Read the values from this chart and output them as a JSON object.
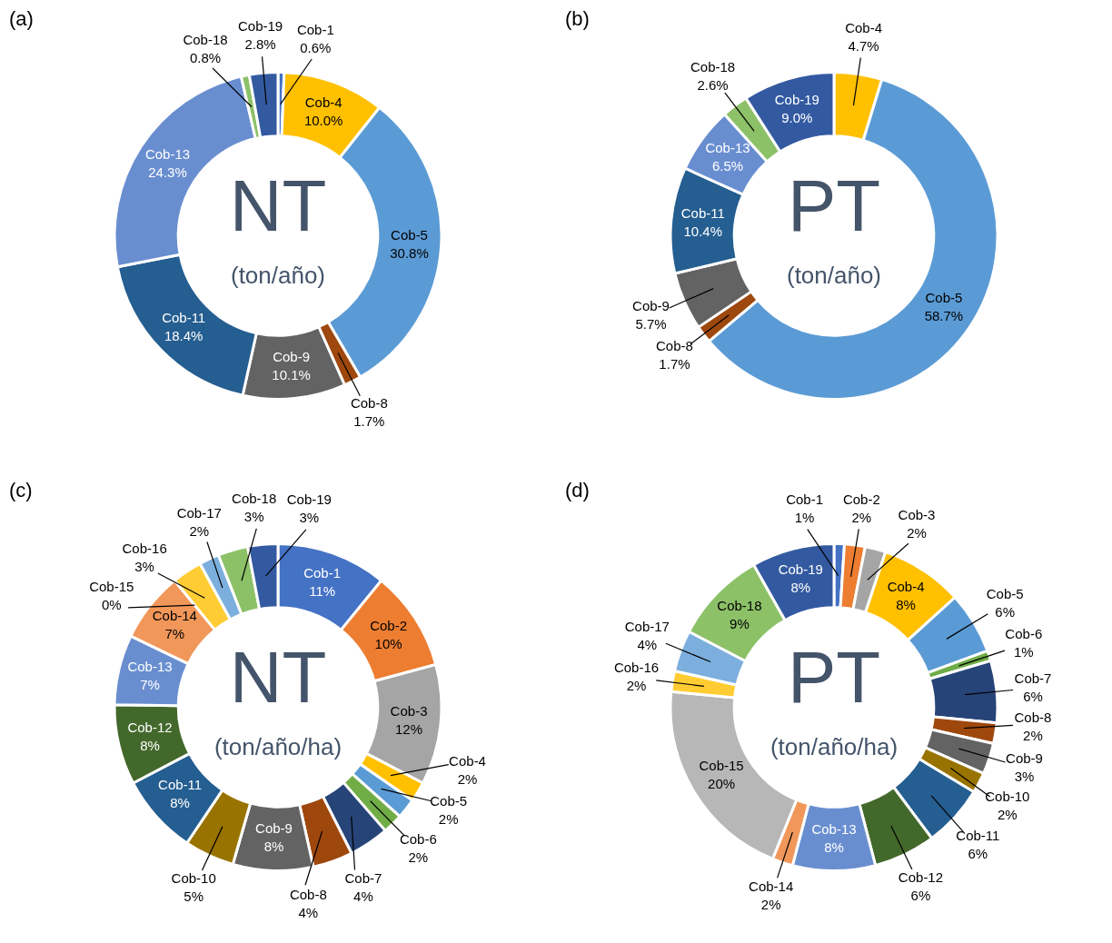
{
  "chart_data": [
    {
      "type": "donut",
      "title": "NT",
      "subtitle": "(ton/año)",
      "annotations": [
        "(a)"
      ],
      "legend": false,
      "categories": [
        "Cob-1",
        "Cob-4",
        "Cob-5",
        "Cob-8",
        "Cob-9",
        "Cob-11",
        "Cob-13",
        "Cob-18",
        "Cob-19"
      ],
      "values": [
        0.6,
        10.0,
        30.8,
        1.7,
        10.1,
        18.4,
        24.3,
        0.8,
        2.8
      ],
      "value_labels": [
        "0.6%",
        "10.0%",
        "30.8%",
        "1.7%",
        "10.1%",
        "18.4%",
        "24.3%",
        "0.8%",
        "2.8%"
      ],
      "colors": [
        "#4472c4",
        "#ffc000",
        "#5b9bd5",
        "#9e480e",
        "#636363",
        "#255e91",
        "#698ed0",
        "#8cc168",
        "#335aa1"
      ]
    },
    {
      "type": "donut",
      "title": "PT",
      "subtitle": "(ton/año)",
      "annotations": [
        "(b)"
      ],
      "legend": false,
      "categories": [
        "Cob-4",
        "Cob-5",
        "Cob-8",
        "Cob-9",
        "Cob-11",
        "Cob-13",
        "Cob-18",
        "Cob-19"
      ],
      "values": [
        4.7,
        58.7,
        1.7,
        5.7,
        10.4,
        6.5,
        2.6,
        9.0
      ],
      "value_labels": [
        "4.7%",
        "58.7%",
        "1.7%",
        "5.7%",
        "10.4%",
        "6.5%",
        "2.6%",
        "9.0%"
      ],
      "colors": [
        "#ffc000",
        "#5b9bd5",
        "#9e480e",
        "#636363",
        "#255e91",
        "#698ed0",
        "#8cc168",
        "#335aa1"
      ]
    },
    {
      "type": "donut",
      "title": "NT",
      "subtitle": "(ton/año/ha)",
      "annotations": [
        "(c)"
      ],
      "legend": false,
      "categories": [
        "Cob-1",
        "Cob-2",
        "Cob-3",
        "Cob-4",
        "Cob-5",
        "Cob-6",
        "Cob-7",
        "Cob-8",
        "Cob-9",
        "Cob-10",
        "Cob-11",
        "Cob-12",
        "Cob-13",
        "Cob-14",
        "Cob-15",
        "Cob-16",
        "Cob-17",
        "Cob-18",
        "Cob-19"
      ],
      "values": [
        11,
        10,
        12,
        2,
        2,
        2,
        4,
        4,
        8,
        5,
        8,
        8,
        7,
        7,
        0,
        3,
        2,
        3,
        3
      ],
      "value_labels": [
        "11%",
        "10%",
        "12%",
        "2%",
        "2%",
        "2%",
        "4%",
        "4%",
        "8%",
        "5%",
        "8%",
        "8%",
        "7%",
        "7%",
        "0%",
        "3%",
        "2%",
        "3%",
        "3%"
      ],
      "colors": [
        "#4472c4",
        "#ed7d31",
        "#a5a5a5",
        "#ffc000",
        "#5b9bd5",
        "#70ad47",
        "#264478",
        "#9e480e",
        "#636363",
        "#997300",
        "#255e91",
        "#43682b",
        "#698ed0",
        "#f1975a",
        "#b7b7b7",
        "#ffcd33",
        "#7cafdd",
        "#8cc168",
        "#335aa1"
      ]
    },
    {
      "type": "donut",
      "title": "PT",
      "subtitle": "(ton/año/ha)",
      "annotations": [
        "(d)"
      ],
      "legend": false,
      "categories": [
        "Cob-1",
        "Cob-2",
        "Cob-3",
        "Cob-4",
        "Cob-5",
        "Cob-6",
        "Cob-7",
        "Cob-8",
        "Cob-9",
        "Cob-10",
        "Cob-11",
        "Cob-12",
        "Cob-13",
        "Cob-14",
        "Cob-15",
        "Cob-16",
        "Cob-17",
        "Cob-18",
        "Cob-19"
      ],
      "values": [
        1,
        2,
        2,
        8,
        6,
        1,
        6,
        2,
        3,
        2,
        6,
        6,
        8,
        2,
        20,
        2,
        4,
        9,
        8
      ],
      "value_labels": [
        "1%",
        "2%",
        "2%",
        "8%",
        "6%",
        "1%",
        "6%",
        "2%",
        "3%",
        "2%",
        "6%",
        "6%",
        "8%",
        "2%",
        "20%",
        "2%",
        "4%",
        "9%",
        "8%"
      ],
      "colors": [
        "#4472c4",
        "#ed7d31",
        "#a5a5a5",
        "#ffc000",
        "#5b9bd5",
        "#70ad47",
        "#264478",
        "#9e480e",
        "#636363",
        "#997300",
        "#255e91",
        "#43682b",
        "#698ed0",
        "#f1975a",
        "#b7b7b7",
        "#ffcd33",
        "#7cafdd",
        "#8cc168",
        "#335aa1"
      ]
    }
  ]
}
